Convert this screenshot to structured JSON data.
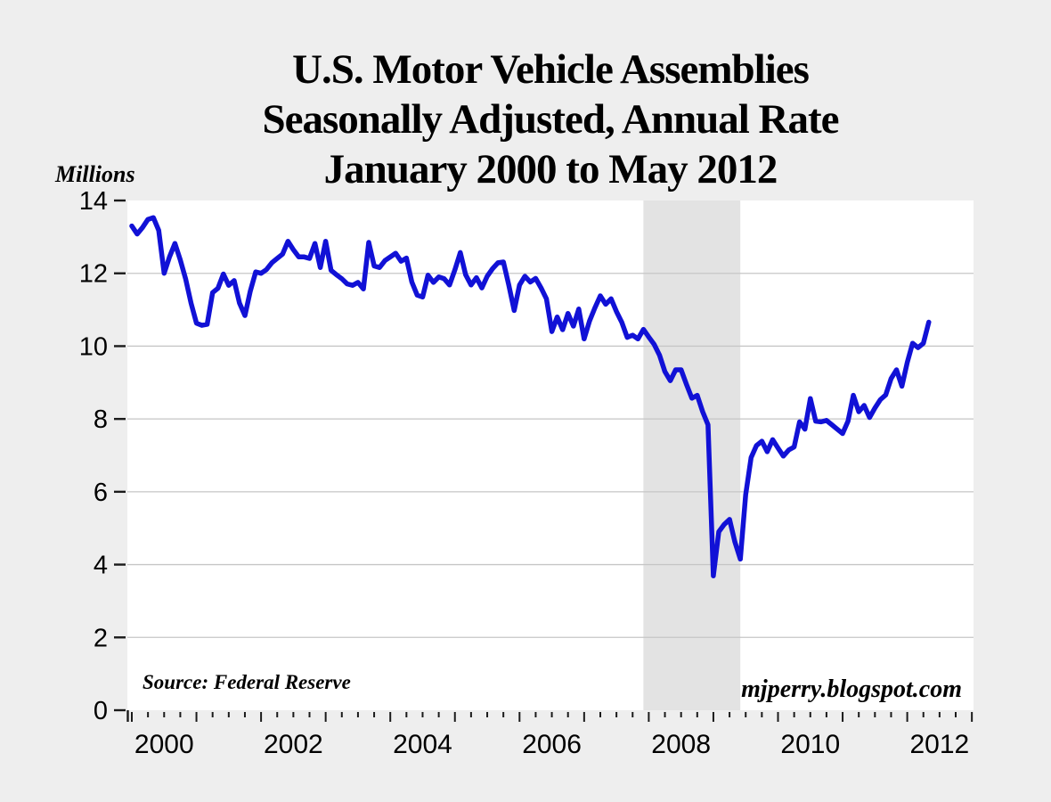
{
  "page": {
    "background": "#eeeeee"
  },
  "title": {
    "line1": "U.S. Motor Vehicle Assemblies",
    "line2": "Seasonally Adjusted, Annual Rate",
    "line3": "January 2000 to May 2012"
  },
  "y_axis_label": "Millions",
  "source_note": "Source: Federal Reserve",
  "watermark": "mjperry.blogspot.com",
  "chart_data": {
    "type": "line",
    "series_name": "U.S. motor vehicle assemblies, seasonally adjusted annual rate (millions of units)",
    "frequency": "monthly",
    "x_start": "2000-01",
    "x_end": "2012-05",
    "values": [
      13.3,
      13.08,
      13.26,
      13.48,
      13.53,
      13.18,
      12.0,
      12.45,
      12.82,
      12.37,
      11.84,
      11.18,
      10.63,
      10.57,
      10.6,
      11.47,
      11.59,
      11.98,
      11.67,
      11.8,
      11.18,
      10.84,
      11.51,
      12.04,
      12.0,
      12.1,
      12.29,
      12.41,
      12.53,
      12.88,
      12.65,
      12.45,
      12.45,
      12.41,
      12.82,
      12.16,
      12.88,
      12.08,
      11.96,
      11.85,
      11.71,
      11.67,
      11.75,
      11.57,
      12.85,
      12.2,
      12.16,
      12.35,
      12.45,
      12.55,
      12.33,
      12.42,
      11.76,
      11.4,
      11.35,
      11.95,
      11.75,
      11.9,
      11.85,
      11.68,
      12.1,
      12.57,
      11.96,
      11.68,
      11.88,
      11.6,
      11.92,
      12.13,
      12.29,
      12.31,
      11.68,
      10.98,
      11.68,
      11.92,
      11.76,
      11.86,
      11.6,
      11.3,
      10.4,
      10.8,
      10.45,
      10.9,
      10.55,
      11.02,
      10.2,
      10.69,
      11.05,
      11.38,
      11.15,
      11.3,
      10.95,
      10.65,
      10.24,
      10.3,
      10.2,
      10.46,
      10.25,
      10.05,
      9.75,
      9.3,
      9.05,
      9.35,
      9.35,
      8.95,
      8.57,
      8.65,
      8.2,
      7.84,
      3.69,
      4.9,
      5.1,
      5.24,
      4.62,
      4.15,
      5.92,
      6.94,
      7.27,
      7.39,
      7.1,
      7.43,
      7.2,
      6.98,
      7.15,
      7.23,
      7.92,
      7.72,
      8.56,
      7.94,
      7.92,
      7.96,
      7.84,
      7.72,
      7.6,
      7.94,
      8.65,
      8.2,
      8.37,
      8.04,
      8.3,
      8.53,
      8.66,
      9.11,
      9.35,
      8.9,
      9.55,
      10.08,
      9.96,
      10.08,
      10.66
    ],
    "ylim": [
      0,
      14
    ],
    "y_ticks": [
      0,
      2,
      4,
      6,
      8,
      10,
      12,
      14
    ],
    "x_year_labels": [
      "2000",
      "2002",
      "2004",
      "2006",
      "2008",
      "2010",
      "2012"
    ],
    "x_tick_interval_months": 3,
    "grid": "horizontal",
    "recession_band": {
      "start_year": 2007.9167,
      "end_year": 2009.4167
    },
    "colors": {
      "line": "#1111d6",
      "plot_background": "#ffffff",
      "recession_band": "#e3e3e3",
      "gridline": "#c6c6c6",
      "axis": "#1a1a1a",
      "text": "#000000"
    }
  }
}
